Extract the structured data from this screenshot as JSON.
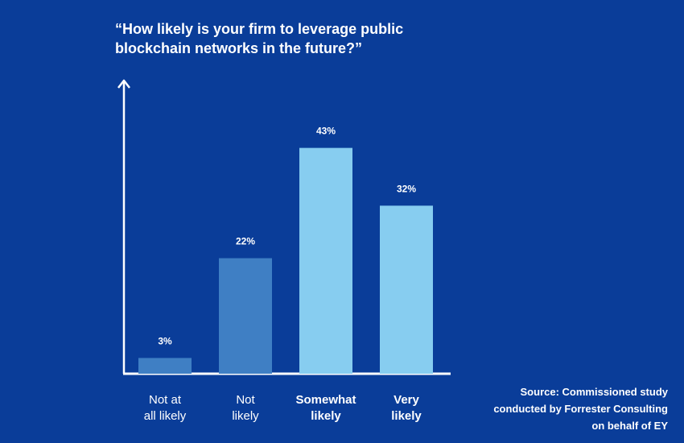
{
  "chart_data": {
    "type": "bar",
    "title": "“How likely is your firm to leverage public blockchain networks in the future?”",
    "categories": [
      {
        "line1": "Not at",
        "line2": "all likely",
        "bold": false
      },
      {
        "line1": "Not",
        "line2": "likely",
        "bold": false
      },
      {
        "line1": "Somewhat",
        "line2": "likely",
        "bold": true
      },
      {
        "line1": "Very",
        "line2": "likely",
        "bold": true
      }
    ],
    "values": [
      3,
      22,
      43,
      32
    ],
    "value_labels": [
      "3%",
      "22%",
      "43%",
      "32%"
    ],
    "bar_colors": [
      "#3f7fc4",
      "#3f7fc4",
      "#87cdf0",
      "#87cdf0"
    ],
    "ylim": [
      0,
      50
    ],
    "xlabel": "",
    "ylabel": "",
    "grid": false,
    "source": [
      "Source: Commissioned study",
      "conducted by Forrester Consulting",
      "on behalf of EY"
    ]
  },
  "colors": {
    "background": "#0a3d99",
    "axis": "#ffffff",
    "text": "#ffffff"
  }
}
